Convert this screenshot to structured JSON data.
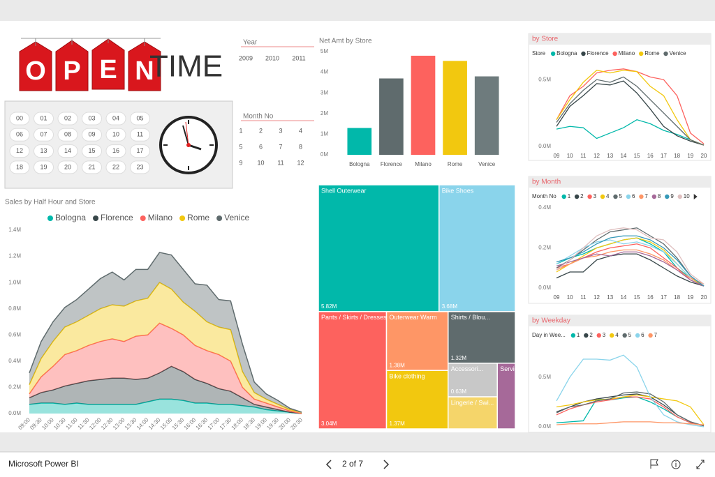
{
  "header": {
    "logo_letters": [
      "O",
      "P",
      "E",
      "N"
    ],
    "logo_word": "TIME"
  },
  "slicers": {
    "year": {
      "title": "Year",
      "items": [
        "2009",
        "2010",
        "2011"
      ]
    },
    "month": {
      "title": "Month No",
      "items": [
        "1",
        "2",
        "3",
        "4",
        "5",
        "6",
        "7",
        "8",
        "9",
        "10",
        "11",
        "12"
      ]
    },
    "hour": {
      "items": [
        "00",
        "01",
        "02",
        "03",
        "04",
        "05",
        "06",
        "07",
        "08",
        "09",
        "10",
        "11",
        "12",
        "13",
        "14",
        "15",
        "16",
        "17",
        "18",
        "19",
        "20",
        "21",
        "22",
        "23"
      ]
    }
  },
  "chart_data": [
    {
      "type": "stacked-area",
      "title": "Sales by Half Hour and Store",
      "categories": [
        "09:00",
        "09:30",
        "10:00",
        "10:30",
        "11:00",
        "11:30",
        "12:00",
        "12:30",
        "13:00",
        "13:30",
        "14:00",
        "14:30",
        "15:00",
        "15:30",
        "16:00",
        "16:30",
        "17:00",
        "17:30",
        "18:00",
        "18:30",
        "19:00",
        "19:30",
        "20:00",
        "20:30"
      ],
      "series": [
        {
          "name": "Bologna",
          "color": "#01b8aa",
          "values": [
            0.07,
            0.08,
            0.08,
            0.07,
            0.08,
            0.07,
            0.07,
            0.07,
            0.07,
            0.07,
            0.09,
            0.11,
            0.11,
            0.1,
            0.08,
            0.08,
            0.07,
            0.07,
            0.06,
            0.05,
            0.03,
            0.02,
            0.01,
            0.0
          ]
        },
        {
          "name": "Florence",
          "color": "#374649",
          "values": [
            0.05,
            0.08,
            0.1,
            0.14,
            0.15,
            0.18,
            0.19,
            0.2,
            0.2,
            0.19,
            0.18,
            0.2,
            0.25,
            0.22,
            0.18,
            0.15,
            0.12,
            0.1,
            0.06,
            0.02,
            0.02,
            0.01,
            0.0,
            0.0
          ]
        },
        {
          "name": "Milano",
          "color": "#fd625e",
          "values": [
            0.03,
            0.12,
            0.18,
            0.24,
            0.25,
            0.27,
            0.29,
            0.3,
            0.28,
            0.33,
            0.33,
            0.38,
            0.29,
            0.28,
            0.26,
            0.25,
            0.26,
            0.23,
            0.08,
            0.04,
            0.03,
            0.02,
            0.01,
            0.0
          ]
        },
        {
          "name": "Rome",
          "color": "#f2c80f",
          "values": [
            0.07,
            0.14,
            0.19,
            0.21,
            0.22,
            0.23,
            0.25,
            0.26,
            0.27,
            0.27,
            0.28,
            0.31,
            0.3,
            0.25,
            0.26,
            0.22,
            0.21,
            0.24,
            0.12,
            0.05,
            0.03,
            0.02,
            0.01,
            0.01
          ]
        },
        {
          "name": "Venice",
          "color": "#5f6b6d",
          "values": [
            0.09,
            0.13,
            0.15,
            0.15,
            0.17,
            0.2,
            0.23,
            0.25,
            0.2,
            0.24,
            0.22,
            0.23,
            0.26,
            0.25,
            0.21,
            0.28,
            0.21,
            0.22,
            0.21,
            0.08,
            0.04,
            0.03,
            0.01,
            0.0
          ]
        }
      ],
      "ylim": [
        0,
        1.4
      ],
      "yticks": [
        {
          "value": 0,
          "label": "0.0M"
        },
        {
          "value": 0.2,
          "label": "0.2M"
        },
        {
          "value": 0.4,
          "label": "0.4M"
        },
        {
          "value": 0.6,
          "label": "0.6M"
        },
        {
          "value": 0.8,
          "label": "0.8M"
        },
        {
          "value": 1.0,
          "label": "1.0M"
        },
        {
          "value": 1.2,
          "label": "1.2M"
        },
        {
          "value": 1.4,
          "label": "1.4M"
        }
      ],
      "legend": "top"
    },
    {
      "type": "bar",
      "title": "Net Amt by Store",
      "categories": [
        "Bologna",
        "Florence",
        "Milano",
        "Rome",
        "Venice"
      ],
      "values": [
        1.3,
        3.7,
        4.8,
        4.55,
        3.8
      ],
      "colors": [
        "#01b8aa",
        "#5f6b6d",
        "#fd625e",
        "#f2c80f",
        "#6e7b7d"
      ],
      "ylim": [
        0,
        5
      ],
      "yticks": [
        {
          "value": 0,
          "label": "0M"
        },
        {
          "value": 1,
          "label": "1M"
        },
        {
          "value": 2,
          "label": "2M"
        },
        {
          "value": 3,
          "label": "3M"
        },
        {
          "value": 4,
          "label": "4M"
        },
        {
          "value": 5,
          "label": "5M"
        }
      ]
    },
    {
      "type": "treemap",
      "categories": [
        "Shell Outerwear",
        "Bike Shoes",
        "Pants / Skirts / Dresses",
        "Bike clothing",
        "Shirts / Blou...",
        "Outerwear Warm",
        "Accessori...",
        "Lingerie / Swi...",
        "Services"
      ],
      "values": [
        5.82,
        3.68,
        3.04,
        1.37,
        1.32,
        1.38,
        0.63,
        0.6,
        0.45
      ],
      "value_labels": [
        "5.82M",
        "3.68M",
        "3.04M",
        "1.37M",
        "1.32M",
        "1.38M",
        "0.63M",
        null,
        null
      ],
      "colors": [
        "#01b8aa",
        "#8ad4eb",
        "#fd625e",
        "#f2c80f",
        "#5f6b6d",
        "#fe9666",
        "#c8c8c8",
        "#f5d56a",
        "#a66999"
      ]
    },
    {
      "type": "line",
      "title": "by Store",
      "legend_title": "Store",
      "x": [
        9,
        10,
        11,
        12,
        13,
        14,
        15,
        16,
        17,
        18,
        19,
        20
      ],
      "xlim": [
        9,
        20
      ],
      "xticks": [
        {
          "value": 9,
          "label": "09"
        },
        10,
        11,
        12,
        13,
        14,
        15,
        16,
        17,
        18,
        19,
        20
      ],
      "series": [
        {
          "name": "Bologna",
          "color": "#01b8aa",
          "values": [
            0.13,
            0.15,
            0.14,
            0.06,
            0.1,
            0.14,
            0.2,
            0.17,
            0.12,
            0.09,
            0.05,
            0.01
          ]
        },
        {
          "name": "Florence",
          "color": "#374649",
          "values": [
            0.15,
            0.3,
            0.38,
            0.47,
            0.46,
            0.49,
            0.4,
            0.28,
            0.15,
            0.08,
            0.04,
            0.01
          ]
        },
        {
          "name": "Milano",
          "color": "#fd625e",
          "values": [
            0.2,
            0.38,
            0.45,
            0.55,
            0.57,
            0.58,
            0.56,
            0.52,
            0.5,
            0.38,
            0.1,
            0.02
          ]
        },
        {
          "name": "Rome",
          "color": "#f2c80f",
          "values": [
            0.2,
            0.35,
            0.48,
            0.57,
            0.55,
            0.57,
            0.56,
            0.45,
            0.38,
            0.2,
            0.05,
            0.01
          ]
        },
        {
          "name": "Venice",
          "color": "#5f6b6d",
          "values": [
            0.18,
            0.32,
            0.42,
            0.5,
            0.48,
            0.52,
            0.45,
            0.35,
            0.25,
            0.15,
            0.05,
            0.01
          ]
        }
      ],
      "ylim": [
        0,
        0.6
      ],
      "yticks": [
        {
          "value": 0,
          "label": "0.0M"
        },
        {
          "value": 0.5,
          "label": "0.5M"
        }
      ]
    },
    {
      "type": "line",
      "title": "by Month",
      "legend_title": "Month No",
      "x": [
        9,
        10,
        11,
        12,
        13,
        14,
        15,
        16,
        17,
        18,
        19,
        20
      ],
      "xlim": [
        9,
        20
      ],
      "xticks": [
        {
          "value": 9,
          "label": "09"
        },
        10,
        11,
        12,
        13,
        14,
        15,
        16,
        17,
        18,
        19,
        20
      ],
      "series": [
        {
          "name": "1",
          "color": "#01b8aa",
          "values": [
            0.12,
            0.15,
            0.17,
            0.2,
            0.22,
            0.24,
            0.25,
            0.22,
            0.18,
            0.1,
            0.05,
            0.01
          ]
        },
        {
          "name": "2",
          "color": "#374649",
          "values": [
            0.05,
            0.08,
            0.08,
            0.14,
            0.16,
            0.17,
            0.17,
            0.14,
            0.1,
            0.06,
            0.03,
            0.01
          ]
        },
        {
          "name": "3",
          "color": "#fd625e",
          "values": [
            0.1,
            0.12,
            0.15,
            0.18,
            0.2,
            0.21,
            0.22,
            0.2,
            0.15,
            0.1,
            0.04,
            0.01
          ]
        },
        {
          "name": "4",
          "color": "#f2c80f",
          "values": [
            0.08,
            0.12,
            0.16,
            0.2,
            0.22,
            0.24,
            0.25,
            0.23,
            0.19,
            0.12,
            0.05,
            0.01
          ]
        },
        {
          "name": "5",
          "color": "#5f6b6d",
          "values": [
            0.1,
            0.14,
            0.19,
            0.24,
            0.28,
            0.29,
            0.3,
            0.26,
            0.22,
            0.15,
            0.06,
            0.01
          ]
        },
        {
          "name": "6",
          "color": "#8ad4eb",
          "values": [
            0.12,
            0.16,
            0.2,
            0.23,
            0.24,
            0.22,
            0.23,
            0.21,
            0.18,
            0.12,
            0.05,
            0.02
          ]
        },
        {
          "name": "7",
          "color": "#fe9666",
          "values": [
            0.09,
            0.12,
            0.15,
            0.16,
            0.18,
            0.19,
            0.19,
            0.17,
            0.14,
            0.09,
            0.05,
            0.02
          ]
        },
        {
          "name": "8",
          "color": "#a66999",
          "values": [
            0.11,
            0.13,
            0.15,
            0.17,
            0.16,
            0.18,
            0.18,
            0.16,
            0.13,
            0.09,
            0.04,
            0.01
          ]
        },
        {
          "name": "9",
          "color": "#3599b8",
          "values": [
            0.13,
            0.15,
            0.18,
            0.22,
            0.25,
            0.26,
            0.26,
            0.24,
            0.2,
            0.14,
            0.06,
            0.01
          ]
        },
        {
          "name": "10",
          "color": "#dfbfbf",
          "values": [
            0.09,
            0.14,
            0.2,
            0.26,
            0.29,
            0.3,
            0.29,
            0.25,
            0.24,
            0.18,
            0.07,
            0.02
          ]
        }
      ],
      "ylim": [
        0,
        0.4
      ],
      "yticks": [
        {
          "value": 0,
          "label": "0.0M"
        },
        {
          "value": 0.2,
          "label": "0.2M"
        },
        {
          "value": 0.4,
          "label": "0.4M"
        }
      ]
    },
    {
      "type": "line",
      "title": "by Weekday",
      "legend_title": "Day in Wee...",
      "x": [
        9,
        10,
        11,
        12,
        13,
        14,
        15,
        16,
        17,
        18,
        19,
        20
      ],
      "xlim": [
        9,
        20
      ],
      "series": [
        {
          "name": "1",
          "color": "#01b8aa",
          "values": [
            0.04,
            0.05,
            0.06,
            0.28,
            0.27,
            0.29,
            0.3,
            0.25,
            0.18,
            0.1,
            0.04,
            0.01
          ]
        },
        {
          "name": "2",
          "color": "#374649",
          "values": [
            0.15,
            0.2,
            0.25,
            0.28,
            0.3,
            0.32,
            0.33,
            0.3,
            0.22,
            0.12,
            0.05,
            0.01
          ]
        },
        {
          "name": "3",
          "color": "#fd625e",
          "values": [
            0.12,
            0.18,
            0.22,
            0.25,
            0.27,
            0.3,
            0.3,
            0.28,
            0.2,
            0.1,
            0.04,
            0.01
          ]
        },
        {
          "name": "4",
          "color": "#f2c80f",
          "values": [
            0.2,
            0.22,
            0.25,
            0.27,
            0.28,
            0.3,
            0.32,
            0.3,
            0.28,
            0.26,
            0.2,
            0.02
          ]
        },
        {
          "name": "5",
          "color": "#5f6b6d",
          "values": [
            0.14,
            0.2,
            0.22,
            0.26,
            0.28,
            0.34,
            0.35,
            0.33,
            0.25,
            0.12,
            0.05,
            0.01
          ]
        },
        {
          "name": "6",
          "color": "#8ad4eb",
          "values": [
            0.26,
            0.5,
            0.68,
            0.68,
            0.67,
            0.72,
            0.6,
            0.3,
            0.12,
            0.05,
            0.02,
            0.0
          ]
        },
        {
          "name": "7",
          "color": "#fe9666",
          "values": [
            0.02,
            0.03,
            0.03,
            0.03,
            0.04,
            0.05,
            0.05,
            0.05,
            0.04,
            0.04,
            0.03,
            0.02
          ]
        }
      ],
      "ylim": [
        0,
        0.75
      ],
      "yticks": [
        {
          "value": 0,
          "label": "0.0M"
        },
        {
          "value": 0.5,
          "label": "0.5M"
        }
      ]
    }
  ],
  "footer": {
    "brand": "Microsoft Power BI",
    "page": "2 of 7"
  }
}
